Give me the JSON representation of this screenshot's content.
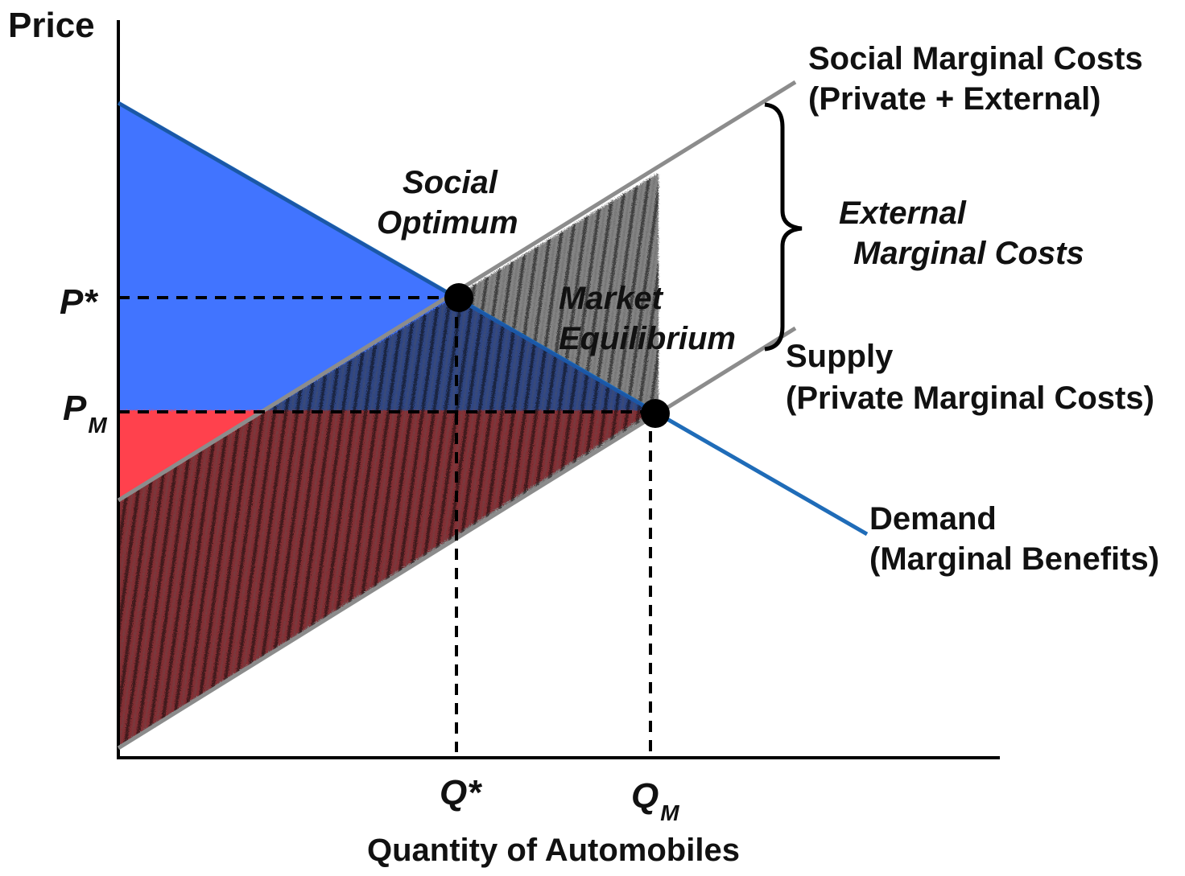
{
  "diagram": {
    "y_axis_label": "Price",
    "x_axis_label": "Quantity of Automobiles",
    "price_labels": {
      "p_star": "P*",
      "p_m_main": "P",
      "p_m_sub": "M"
    },
    "quantity_labels": {
      "q_star": "Q*",
      "q_m_main": "Q",
      "q_m_sub": "M"
    },
    "curves": {
      "smc_line1": "Social Marginal Costs",
      "smc_line2": "(Private + External)",
      "supply_line1": "Supply",
      "supply_line2": "(Private Marginal Costs)",
      "demand_line1": "Demand",
      "demand_line2": "(Marginal Benefits)"
    },
    "annotations": {
      "social_optimum_line1": "Social",
      "social_optimum_line2": "Optimum",
      "market_eq_line1": "Market",
      "market_eq_line2": "Equilibrium",
      "external_line1": "External",
      "external_line2": "Marginal Costs"
    },
    "colors": {
      "consumer_surplus": "#1f5cff",
      "producer_surplus": "#ff1f2f",
      "external_cost_shading": "#222222",
      "demand_curve": "#1f6cb8",
      "cost_curves": "#8c8c8c",
      "axes": "#000000"
    }
  }
}
